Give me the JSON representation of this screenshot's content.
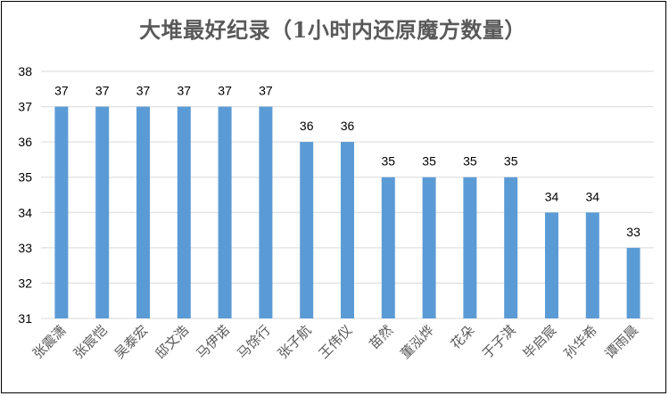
{
  "chart_data": {
    "type": "bar",
    "title": "大堆最好纪录（1小时内还原魔方数量）",
    "xlabel": "",
    "ylabel": "",
    "ylim": [
      31,
      38
    ],
    "yticks": [
      31,
      32,
      33,
      34,
      35,
      36,
      37,
      38
    ],
    "grid": true,
    "legend": "none",
    "bar_color": "#5B9BD5",
    "grid_color": "#D9D9D9",
    "categories": [
      "张震潇",
      "张宸恺",
      "吴泰宏",
      "邸文浩",
      "马伊诺",
      "马馀行",
      "张子航",
      "王伟仪",
      "苗然",
      "董泓烨",
      "花朵",
      "于子淇",
      "毕启宸",
      "孙华希",
      "谭雨晨"
    ],
    "values": [
      37,
      37,
      37,
      37,
      37,
      37,
      36,
      36,
      35,
      35,
      35,
      35,
      34,
      34,
      33
    ]
  }
}
